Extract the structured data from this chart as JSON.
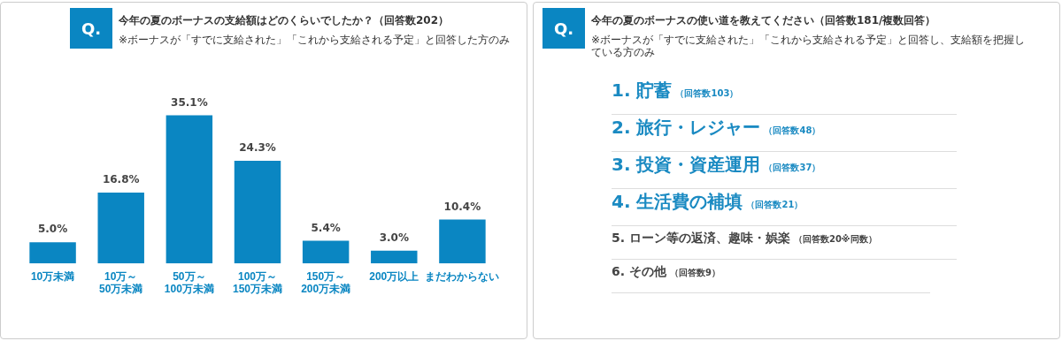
{
  "chart_data": [
    {
      "type": "bar",
      "title": "今年の夏のボーナスの支給額はどのくらいでしたか？（回答数202）",
      "subtitle": "※ボーナスが「すでに支給された」「これから支給される予定」と回答した方のみ",
      "annotations": [
        "Q."
      ],
      "categories": [
        "10万未満",
        "10万～\n50万未満",
        "50万～\n100万未満",
        "100万～\n150万未満",
        "150万～\n200万未満",
        "200万以上",
        "まだわからない"
      ],
      "values": [
        5.0,
        16.8,
        35.1,
        24.3,
        5.4,
        3.0,
        10.4
      ],
      "value_labels": [
        "5.0%",
        "16.8%",
        "35.1%",
        "24.3%",
        "5.4%",
        "3.0%",
        "10.4%"
      ],
      "color": "#0a86c2",
      "grid": false,
      "legend": false
    },
    {
      "type": "other",
      "title": "今年の夏のボーナスの使い道を教えてください（回答数181/複数回答）",
      "subtitle": "※ボーナスが「すでに支給された」「これから支給される予定」と回答し、支給額を把握している方のみ",
      "annotations": [
        "Q.",
        "1. 貯蓄",
        "（回答数103）",
        "2. 旅行・レジャー",
        "（回答数48）",
        "3. 投資・資産運用",
        "（回答数37）",
        "4. 生活費の補填",
        "（回答数21）",
        "5. ローン等の返済、趣味・娯楽",
        "（回答数20※同数）",
        "6. その他",
        "（回答数9）"
      ]
    }
  ]
}
